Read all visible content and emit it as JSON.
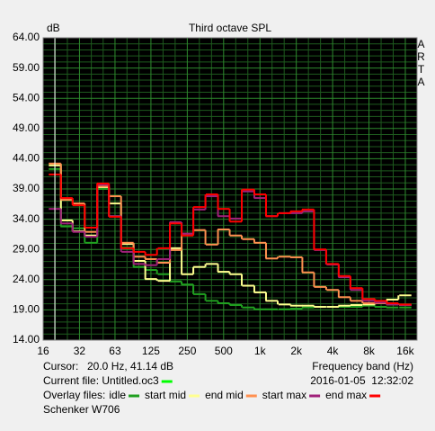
{
  "chart_data": {
    "type": "step",
    "title": "Third octave SPL",
    "y_label": "dB",
    "x_label": "Frequency band (Hz)",
    "brand": "ARTA",
    "log_x": true,
    "grid": true,
    "xlim": [
      16,
      20000
    ],
    "ylim": [
      14,
      64
    ],
    "xticks": [
      16,
      32,
      63,
      125,
      250,
      500,
      {
        "value": 1000,
        "label": "1k"
      },
      {
        "value": 2000,
        "label": "2k"
      },
      {
        "value": 4000,
        "label": "4k"
      },
      {
        "value": 8000,
        "label": "8k"
      },
      {
        "value": 16000,
        "label": "16k"
      }
    ],
    "yticks": [
      {
        "value": 64,
        "label": "64.00"
      },
      {
        "value": 59,
        "label": "59.00"
      },
      {
        "value": 54,
        "label": "54.00"
      },
      {
        "value": 49,
        "label": "49.00"
      },
      {
        "value": 44,
        "label": "44.00"
      },
      {
        "value": 39,
        "label": "39.00"
      },
      {
        "value": 34,
        "label": "34.00"
      },
      {
        "value": 29,
        "label": "29.00"
      },
      {
        "value": 24,
        "label": "24.00"
      },
      {
        "value": 19,
        "label": "19.00"
      },
      {
        "value": 14,
        "label": "14.00"
      }
    ],
    "cursor": {
      "label": "Cursor:",
      "text": "20.0 Hz, 41.14 dB",
      "x": 20,
      "color": "#ffffff"
    },
    "current_file": {
      "label": "Current file: Untitled.oc3",
      "color": "#00ff00"
    },
    "timestamp": "2016-01-05  12:32:02",
    "overlay_label": "Overlay files:",
    "footer": "Schenker W706",
    "x": [
      20,
      25,
      31.5,
      40,
      50,
      63,
      80,
      100,
      125,
      160,
      200,
      250,
      315,
      400,
      500,
      630,
      800,
      1000,
      1250,
      1600,
      2000,
      2500,
      3150,
      4000,
      5000,
      6300,
      8000,
      10000,
      12500,
      16000
    ],
    "series": [
      {
        "name": "idle",
        "color": "#20a020",
        "values": [
          42.3,
          32.8,
          32.5,
          30.1,
          39.0,
          34.5,
          29.3,
          26.1,
          25.6,
          24.9,
          23.7,
          23.2,
          21.6,
          20.5,
          20.1,
          19.8,
          19.4,
          19.1,
          19.1,
          19.1,
          19.2,
          19.4,
          19.5,
          19.5,
          19.5,
          19.5,
          19.7,
          19.5,
          19.4,
          19.4
        ]
      },
      {
        "name": "start mid",
        "color": "#ffff90",
        "values": [
          42.9,
          33.8,
          32.0,
          31.3,
          39.3,
          36.6,
          29.9,
          27.1,
          24.1,
          23.8,
          29.2,
          24.9,
          26.1,
          26.6,
          25.3,
          24.9,
          23.0,
          21.9,
          20.5,
          19.9,
          19.7,
          19.7,
          19.5,
          19.5,
          19.7,
          19.8,
          19.9,
          20.2,
          20.7,
          21.4
        ]
      },
      {
        "name": "end mid",
        "color": "#ff9050",
        "values": [
          43.2,
          37.2,
          36.6,
          31.9,
          39.4,
          37.8,
          30.1,
          27.8,
          27.4,
          26.8,
          28.9,
          31.6,
          32.2,
          29.8,
          32.3,
          31.3,
          30.7,
          30.1,
          27.5,
          27.8,
          27.7,
          25.2,
          22.8,
          22.3,
          21.1,
          20.5,
          20.1,
          20.1,
          19.9,
          19.8
        ]
      },
      {
        "name": "start max",
        "color": "#a0207a",
        "values": [
          35.7,
          33.3,
          31.9,
          31.1,
          39.7,
          34.5,
          28.6,
          26.6,
          26.4,
          27.4,
          33.5,
          31.6,
          35.6,
          37.8,
          34.5,
          34.1,
          38.6,
          37.5,
          34.5,
          35.0,
          35.0,
          35.3,
          28.9,
          26.5,
          24.4,
          22.3,
          20.5,
          20.2,
          19.9,
          19.8
        ]
      },
      {
        "name": "end max",
        "color": "#ff0000",
        "values": [
          41.4,
          37.5,
          36.3,
          32.6,
          39.9,
          34.4,
          29.2,
          28.6,
          28.1,
          29.2,
          33.3,
          31.3,
          36.0,
          38.1,
          35.7,
          33.6,
          38.9,
          38.1,
          34.5,
          35.0,
          35.3,
          35.6,
          29.0,
          26.6,
          24.6,
          22.6,
          20.8,
          20.5,
          20.1,
          19.9
        ]
      }
    ]
  }
}
